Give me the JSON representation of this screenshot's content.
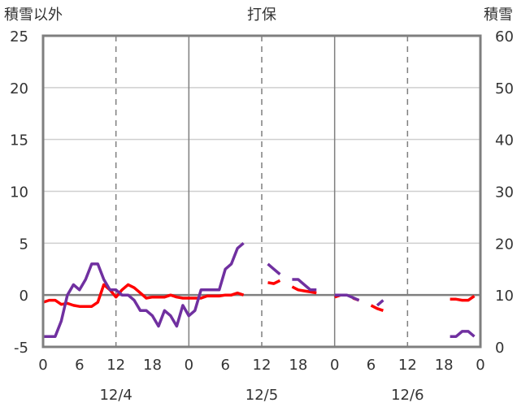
{
  "chart_data": {
    "type": "line",
    "title": "打保",
    "y_left_label": "積雪以外",
    "y_right_label": "積雪",
    "y_left_range": [
      -5,
      25
    ],
    "y_left_ticks": [
      "-5",
      "0",
      "5",
      "10",
      "15",
      "20",
      "25"
    ],
    "y_right_range": [
      0,
      60
    ],
    "y_right_ticks": [
      "0",
      "10",
      "20",
      "30",
      "40",
      "50",
      "60"
    ],
    "x_range_hours": [
      0,
      72
    ],
    "x_tick_labels": [
      "0",
      "6",
      "12",
      "18",
      "0",
      "6",
      "12",
      "18",
      "0",
      "6",
      "12",
      "18",
      "0"
    ],
    "date_labels": [
      "12/4",
      "12/5",
      "12/6"
    ],
    "grid": true,
    "series": [
      {
        "axis": "left",
        "color": "#ff0000",
        "segments": [
          [
            [
              0,
              -0.7
            ],
            [
              1,
              -0.5
            ],
            [
              2,
              -0.5
            ],
            [
              3,
              -0.9
            ],
            [
              4,
              -0.8
            ],
            [
              5,
              -1.0
            ],
            [
              6,
              -1.1
            ],
            [
              7,
              -1.1
            ],
            [
              8,
              -1.1
            ],
            [
              9,
              -0.7
            ],
            [
              10,
              1.0
            ],
            [
              11,
              0.5
            ],
            [
              12,
              -0.2
            ],
            [
              13,
              0.5
            ],
            [
              14,
              1.0
            ],
            [
              15,
              0.7
            ],
            [
              16,
              0.2
            ],
            [
              17,
              -0.3
            ],
            [
              18,
              -0.2
            ],
            [
              19,
              -0.2
            ],
            [
              20,
              -0.2
            ],
            [
              21,
              0.0
            ],
            [
              22,
              -0.2
            ],
            [
              23,
              -0.3
            ],
            [
              24,
              -0.3
            ],
            [
              25,
              -0.3
            ],
            [
              26,
              -0.3
            ],
            [
              27,
              -0.1
            ],
            [
              28,
              -0.1
            ],
            [
              29,
              -0.1
            ],
            [
              30,
              0.0
            ],
            [
              31,
              0.0
            ],
            [
              32,
              0.2
            ],
            [
              33,
              0.0
            ]
          ],
          [
            [
              37,
              1.2
            ],
            [
              38,
              1.1
            ],
            [
              39,
              1.4
            ]
          ],
          [
            [
              41,
              0.8
            ],
            [
              42,
              0.5
            ],
            [
              43,
              0.4
            ],
            [
              44,
              0.3
            ],
            [
              45,
              0.2
            ]
          ],
          [
            [
              48,
              -0.2
            ],
            [
              49,
              0.0
            ]
          ],
          [
            [
              51,
              -0.3
            ],
            [
              52,
              -0.5
            ]
          ],
          [
            [
              54,
              -1.0
            ],
            [
              55,
              -1.3
            ],
            [
              56,
              -1.5
            ]
          ],
          [
            [
              67,
              -0.4
            ],
            [
              68,
              -0.4
            ],
            [
              69,
              -0.5
            ],
            [
              70,
              -0.5
            ],
            [
              71,
              -0.1
            ]
          ]
        ]
      },
      {
        "axis": "right",
        "color": "#7030a0",
        "segments": [
          [
            [
              0,
              2
            ],
            [
              1,
              2
            ],
            [
              2,
              2
            ],
            [
              3,
              5
            ],
            [
              4,
              10
            ],
            [
              5,
              12
            ],
            [
              6,
              11
            ],
            [
              7,
              13
            ],
            [
              8,
              16
            ],
            [
              9,
              16
            ],
            [
              10,
              13
            ],
            [
              11,
              11
            ],
            [
              12,
              11
            ],
            [
              13,
              10
            ],
            [
              14,
              10
            ],
            [
              15,
              9
            ],
            [
              16,
              7
            ],
            [
              17,
              7
            ],
            [
              18,
              6
            ],
            [
              19,
              4
            ],
            [
              20,
              7
            ],
            [
              21,
              6
            ],
            [
              22,
              4
            ],
            [
              23,
              8
            ],
            [
              24,
              6
            ],
            [
              25,
              7
            ],
            [
              26,
              11
            ],
            [
              27,
              11
            ],
            [
              28,
              11
            ],
            [
              29,
              11
            ],
            [
              30,
              15
            ],
            [
              31,
              16
            ],
            [
              32,
              19
            ],
            [
              33,
              20
            ]
          ],
          [
            [
              37,
              16
            ],
            [
              38,
              15
            ],
            [
              39,
              14
            ]
          ],
          [
            [
              41,
              13
            ],
            [
              42,
              13
            ],
            [
              43,
              12
            ],
            [
              44,
              11
            ],
            [
              45,
              11
            ]
          ],
          [
            [
              48,
              10
            ],
            [
              49,
              10
            ],
            [
              50,
              10
            ],
            [
              51,
              9.5
            ],
            [
              52,
              9
            ]
          ],
          [
            [
              55,
              8
            ],
            [
              56,
              9
            ]
          ],
          [
            [
              67,
              2
            ],
            [
              68,
              2
            ],
            [
              69,
              3
            ],
            [
              70,
              3
            ],
            [
              71,
              2
            ]
          ]
        ]
      }
    ]
  }
}
